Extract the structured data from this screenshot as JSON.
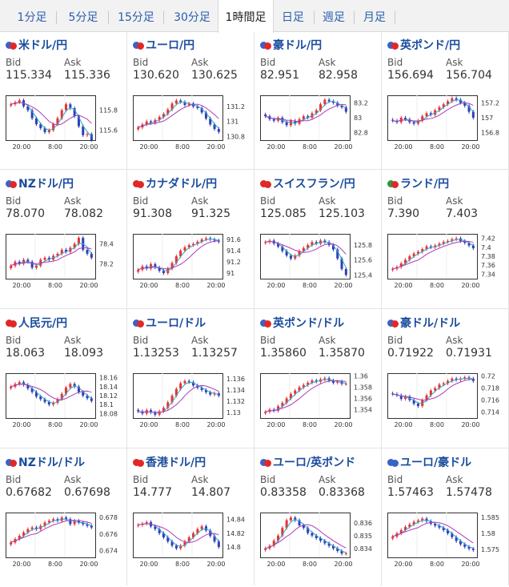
{
  "tabs": [
    "1分足",
    "5分足",
    "15分足",
    "30分足",
    "1時間足",
    "日足",
    "週足",
    "月足"
  ],
  "active_tab": 4,
  "labels": {
    "bid": "Bid",
    "ask": "Ask"
  },
  "colors": {
    "up": "#e8322f",
    "down": "#2f3fb8",
    "ma1": "#2aa8c8",
    "ma2": "#b03ab8",
    "title": "#1a4c9e",
    "tab_link": "#2a5fb0"
  },
  "panels": [
    {
      "title": "米ドル/円",
      "bid": "115.334",
      "ask": "115.336",
      "flags": [
        "#3a63c8",
        "#e02828"
      ],
      "ticks": [
        "115.8",
        "115.6"
      ],
      "xticks": [
        "20:00",
        "8:00",
        "20:00"
      ],
      "chart_data": {
        "type": "candlestick",
        "ylim": [
          115.5,
          115.95
        ],
        "closes": [
          115.86,
          115.88,
          115.9,
          115.84,
          115.8,
          115.72,
          115.66,
          115.62,
          115.58,
          115.6,
          115.66,
          115.72,
          115.8,
          115.86,
          115.82,
          115.74,
          115.64,
          115.55,
          115.56,
          115.5
        ]
      }
    },
    {
      "title": "ユーロ/円",
      "bid": "130.620",
      "ask": "130.625",
      "flags": [
        "#3a63c8",
        "#e02828"
      ],
      "ticks": [
        "131.2",
        "131",
        "130.8"
      ],
      "xticks": [
        "20:00",
        "8:00",
        "20:00"
      ],
      "chart_data": {
        "type": "candlestick",
        "ylim": [
          130.75,
          131.35
        ],
        "closes": [
          130.92,
          130.96,
          131.0,
          130.98,
          131.02,
          131.06,
          131.1,
          131.16,
          131.24,
          131.28,
          131.26,
          131.22,
          131.24,
          131.2,
          131.18,
          131.12,
          131.04,
          130.96,
          130.9,
          130.86
        ]
      }
    },
    {
      "title": "豪ドル/円",
      "bid": "82.951",
      "ask": "82.958",
      "flags": [
        "#3a63c8",
        "#e02828"
      ],
      "ticks": [
        "83.2",
        "83",
        "82.8"
      ],
      "xticks": [
        "20:00",
        "8:00",
        "20:00"
      ],
      "chart_data": {
        "type": "candlestick",
        "ylim": [
          82.7,
          83.3
        ],
        "closes": [
          83.02,
          82.98,
          82.96,
          83.0,
          82.94,
          82.9,
          82.96,
          82.92,
          82.98,
          83.02,
          83.0,
          83.06,
          83.1,
          83.18,
          83.24,
          83.22,
          83.2,
          83.16,
          83.14,
          83.08
        ]
      }
    },
    {
      "title": "英ポンド/円",
      "bid": "156.694",
      "ask": "156.704",
      "flags": [
        "#3a63c8",
        "#e02828"
      ],
      "ticks": [
        "157.2",
        "157",
        "156.8"
      ],
      "xticks": [
        "20:00",
        "8:00",
        "20:00"
      ],
      "chart_data": {
        "type": "candlestick",
        "ylim": [
          156.7,
          157.3
        ],
        "closes": [
          156.96,
          156.94,
          157.0,
          156.98,
          156.94,
          156.92,
          156.96,
          157.02,
          157.06,
          157.04,
          157.1,
          157.14,
          157.18,
          157.22,
          157.26,
          157.24,
          157.2,
          157.16,
          157.08,
          157.0
        ]
      }
    },
    {
      "title": "NZドル/円",
      "bid": "78.070",
      "ask": "78.082",
      "flags": [
        "#3a63c8",
        "#e02828"
      ],
      "ticks": [
        "78.4",
        "78.2"
      ],
      "xticks": [
        "20:00",
        "8:00",
        "20:00"
      ],
      "chart_data": {
        "type": "candlestick",
        "ylim": [
          78.05,
          78.5
        ],
        "closes": [
          78.18,
          78.22,
          78.2,
          78.24,
          78.22,
          78.16,
          78.18,
          78.24,
          78.26,
          78.24,
          78.28,
          78.3,
          78.34,
          78.32,
          78.36,
          78.4,
          78.46,
          78.34,
          78.3,
          78.26
        ]
      }
    },
    {
      "title": "カナダドル/円",
      "bid": "91.308",
      "ask": "91.325",
      "flags": [
        "#e02828",
        "#e02828"
      ],
      "ticks": [
        "91.6",
        "91.4",
        "91.2",
        "91"
      ],
      "xticks": [
        "20:00",
        "8:00",
        "20:00"
      ],
      "chart_data": {
        "type": "candlestick",
        "ylim": [
          90.9,
          91.7
        ],
        "closes": [
          91.06,
          91.12,
          91.08,
          91.16,
          91.1,
          91.04,
          91.0,
          91.08,
          91.18,
          91.3,
          91.4,
          91.46,
          91.5,
          91.52,
          91.56,
          91.6,
          91.62,
          91.6,
          91.58,
          91.56
        ]
      }
    },
    {
      "title": "スイスフラン/円",
      "bid": "125.085",
      "ask": "125.103",
      "flags": [
        "#e02828",
        "#e02828"
      ],
      "ticks": [
        "125.8",
        "125.6",
        "125.4"
      ],
      "xticks": [
        "20:00",
        "8:00",
        "20:00"
      ],
      "chart_data": {
        "type": "candlestick",
        "ylim": [
          125.35,
          125.95
        ],
        "closes": [
          125.84,
          125.86,
          125.82,
          125.78,
          125.72,
          125.66,
          125.62,
          125.66,
          125.72,
          125.76,
          125.8,
          125.84,
          125.82,
          125.86,
          125.84,
          125.8,
          125.74,
          125.62,
          125.48,
          125.4
        ]
      }
    },
    {
      "title": "ランド/円",
      "bid": "7.390",
      "ask": "7.403",
      "flags": [
        "#2a9a40",
        "#e02828"
      ],
      "ticks": [
        "7.42",
        "7.4",
        "7.38",
        "7.36",
        "7.34"
      ],
      "xticks": [
        "20:00",
        "8:00",
        "20:00"
      ],
      "chart_data": {
        "type": "candlestick",
        "ylim": [
          7.33,
          7.43
        ],
        "closes": [
          7.352,
          7.356,
          7.364,
          7.372,
          7.38,
          7.386,
          7.39,
          7.396,
          7.402,
          7.4,
          7.404,
          7.408,
          7.412,
          7.414,
          7.418,
          7.42,
          7.414,
          7.41,
          7.404,
          7.398
        ]
      }
    },
    {
      "title": "人民元/円",
      "bid": "18.063",
      "ask": "18.093",
      "flags": [
        "#e02828",
        "#e02828"
      ],
      "ticks": [
        "18.16",
        "18.14",
        "18.12",
        "18.1",
        "18.08"
      ],
      "xticks": [
        "20:00",
        "8:00",
        "20:00"
      ],
      "chart_data": {
        "type": "candlestick",
        "ylim": [
          18.07,
          18.17
        ],
        "closes": [
          18.14,
          18.146,
          18.15,
          18.144,
          18.136,
          18.128,
          18.118,
          18.112,
          18.106,
          18.1,
          18.104,
          18.112,
          18.124,
          18.138,
          18.146,
          18.14,
          18.128,
          18.12,
          18.114,
          18.108
        ]
      }
    },
    {
      "title": "ユーロ/ドル",
      "bid": "1.13253",
      "ask": "1.13257",
      "flags": [
        "#3a63c8",
        "#e02828"
      ],
      "ticks": [
        "1.136",
        "1.134",
        "1.132",
        "1.13"
      ],
      "xticks": [
        "20:00",
        "8:00",
        "20:00"
      ],
      "chart_data": {
        "type": "candlestick",
        "ylim": [
          1.129,
          1.137
        ],
        "closes": [
          1.1302,
          1.1298,
          1.1304,
          1.13,
          1.1296,
          1.1302,
          1.1308,
          1.1318,
          1.133,
          1.1342,
          1.1352,
          1.1356,
          1.1354,
          1.1348,
          1.1344,
          1.134,
          1.1336,
          1.1332,
          1.1334,
          1.133
        ]
      }
    },
    {
      "title": "英ポンド/ドル",
      "bid": "1.35860",
      "ask": "1.35870",
      "flags": [
        "#3a63c8",
        "#e02828"
      ],
      "ticks": [
        "1.36",
        "1.358",
        "1.356",
        "1.354"
      ],
      "xticks": [
        "20:00",
        "8:00",
        "20:00"
      ],
      "chart_data": {
        "type": "candlestick",
        "ylim": [
          1.3525,
          1.3605
        ],
        "closes": [
          1.3536,
          1.354,
          1.3538,
          1.3546,
          1.3552,
          1.356,
          1.3568,
          1.3574,
          1.358,
          1.3584,
          1.3588,
          1.3592,
          1.359,
          1.3594,
          1.3596,
          1.3592,
          1.3588,
          1.359,
          1.3586,
          1.3586
        ]
      }
    },
    {
      "title": "豪ドル/ドル",
      "bid": "0.71922",
      "ask": "0.71931",
      "flags": [
        "#3a63c8",
        "#e02828"
      ],
      "ticks": [
        "0.72",
        "0.718",
        "0.716",
        "0.714"
      ],
      "xticks": [
        "20:00",
        "8:00",
        "20:00"
      ],
      "chart_data": {
        "type": "candlestick",
        "ylim": [
          0.713,
          0.7205
        ],
        "closes": [
          0.717,
          0.7168,
          0.7162,
          0.7166,
          0.716,
          0.7154,
          0.715,
          0.716,
          0.7168,
          0.7176,
          0.718,
          0.7186,
          0.7188,
          0.7192,
          0.7196,
          0.7194,
          0.7196,
          0.7198,
          0.7196,
          0.7192
        ]
      }
    },
    {
      "title": "NZドル/ドル",
      "bid": "0.67682",
      "ask": "0.67698",
      "flags": [
        "#3a63c8",
        "#e02828"
      ],
      "ticks": [
        "0.678",
        "0.676",
        "0.674"
      ],
      "xticks": [
        "20:00",
        "8:00",
        "20:00"
      ],
      "chart_data": {
        "type": "candlestick",
        "ylim": [
          0.6732,
          0.6786
        ],
        "closes": [
          0.675,
          0.6754,
          0.6758,
          0.6762,
          0.6766,
          0.6768,
          0.6766,
          0.677,
          0.6774,
          0.6776,
          0.6778,
          0.6776,
          0.678,
          0.6778,
          0.6772,
          0.6776,
          0.6774,
          0.6772,
          0.677,
          0.6768
        ]
      }
    },
    {
      "title": "香港ドル/円",
      "bid": "14.777",
      "ask": "14.807",
      "flags": [
        "#e02828",
        "#e02828"
      ],
      "ticks": [
        "14.84",
        "14.82",
        "14.8"
      ],
      "xticks": [
        "20:00",
        "8:00",
        "20:00"
      ],
      "chart_data": {
        "type": "candlestick",
        "ylim": [
          14.785,
          14.85
        ],
        "closes": [
          14.832,
          14.834,
          14.836,
          14.83,
          14.826,
          14.82,
          14.814,
          14.808,
          14.802,
          14.798,
          14.802,
          14.808,
          14.814,
          14.82,
          14.826,
          14.83,
          14.824,
          14.816,
          14.808,
          14.8
        ]
      }
    },
    {
      "title": "ユーロ/英ポンド",
      "bid": "0.83358",
      "ask": "0.83368",
      "flags": [
        "#3a63c8",
        "#e02828"
      ],
      "ticks": [
        "0.836",
        "0.835",
        "0.834"
      ],
      "xticks": [
        "20:00",
        "8:00",
        "20:00"
      ],
      "chart_data": {
        "type": "candlestick",
        "ylim": [
          0.8333,
          0.8368
        ],
        "closes": [
          0.834,
          0.8342,
          0.8346,
          0.835,
          0.8356,
          0.8362,
          0.8364,
          0.8362,
          0.8358,
          0.8356,
          0.8352,
          0.835,
          0.8348,
          0.8346,
          0.8344,
          0.8342,
          0.834,
          0.8338,
          0.8336,
          0.8336
        ]
      }
    },
    {
      "title": "ユーロ/豪ドル",
      "bid": "1.57463",
      "ask": "1.57478",
      "flags": [
        "#3a63c8",
        "#3a63c8"
      ],
      "ticks": [
        "1.585",
        "1.58",
        "1.575"
      ],
      "xticks": [
        "20:00",
        "8:00",
        "20:00"
      ],
      "chart_data": {
        "type": "candlestick",
        "ylim": [
          1.5725,
          1.5865
        ],
        "closes": [
          1.579,
          1.58,
          1.581,
          1.582,
          1.5828,
          1.5836,
          1.584,
          1.5846,
          1.5838,
          1.583,
          1.5824,
          1.5818,
          1.581,
          1.58,
          1.5788,
          1.5776,
          1.5766,
          1.5758,
          1.5752,
          1.5748
        ]
      }
    }
  ]
}
